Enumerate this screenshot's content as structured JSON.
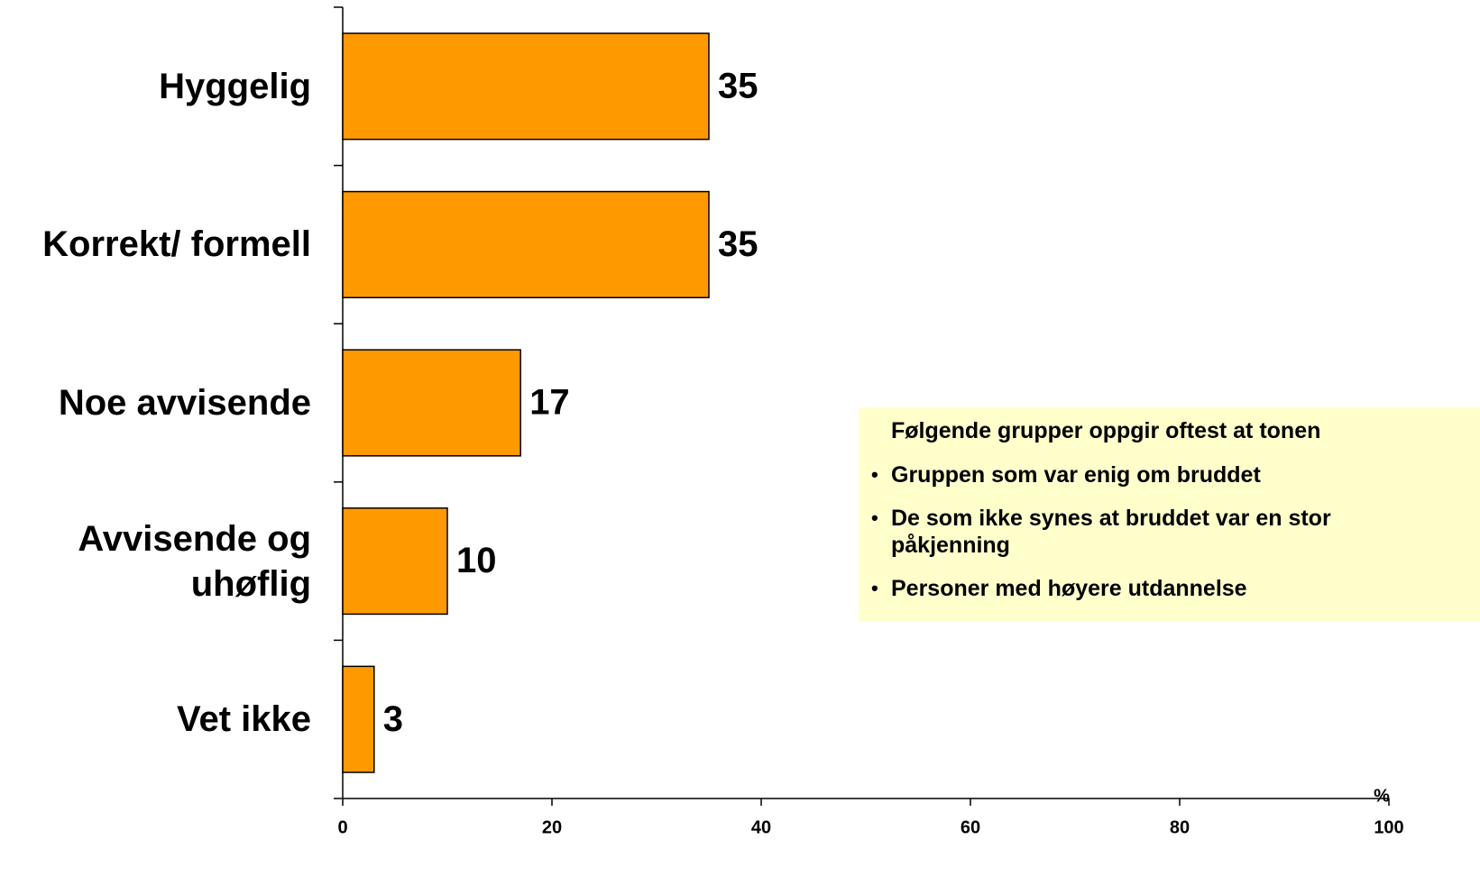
{
  "chart_data": {
    "type": "bar",
    "orientation": "horizontal",
    "categories": [
      "Hyggelig",
      "Korrekt/ formell",
      "Noe avvisende",
      "Avvisende og uhøflig",
      "Vet ikke"
    ],
    "values": [
      35,
      35,
      17,
      10,
      3
    ],
    "color": "#ff9900",
    "xlim": [
      0,
      100
    ],
    "xticks": [
      0,
      20,
      40,
      60,
      80,
      100
    ],
    "x_unit": "%",
    "annotation": {
      "title": "Følgende grupper oppgir oftest at tonen",
      "items": [
        "Gruppen som var enig om bruddet",
        "De som ikke synes at bruddet var en stor påkjenning",
        "Personer med høyere utdannelse"
      ]
    }
  }
}
